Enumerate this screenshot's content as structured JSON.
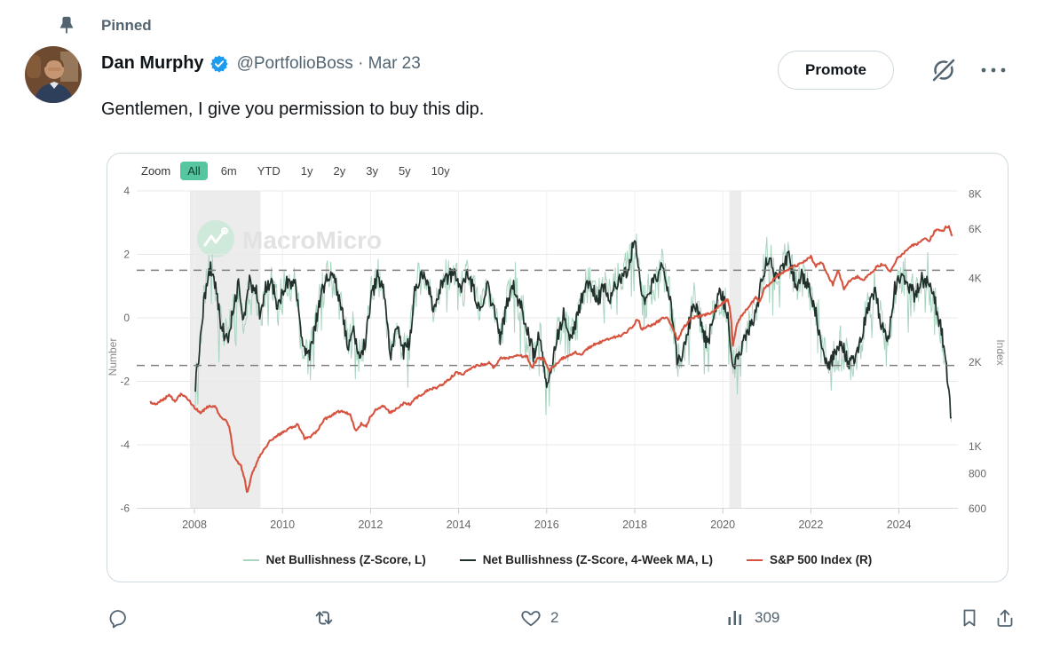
{
  "pinned_label": "Pinned",
  "author": {
    "name": "Dan Murphy",
    "meta": "@PortfolioBoss · Mar 23"
  },
  "promote_label": "Promote",
  "tweet_text": "Gentlemen, I give you permission to buy this dip.",
  "icons": {
    "pin": "pushpin",
    "verified": "blue-verified-check",
    "grok": "slashed-circle",
    "more": "ellipsis",
    "reply": "speech-bubble",
    "repost": "recycle-arrows",
    "like": "heart-outline",
    "views": "bar-chart",
    "bookmark": "bookmark-outline",
    "share": "arrow-up-from-tray"
  },
  "chart": {
    "zoom_label": "Zoom",
    "zoom_buttons": [
      "All",
      "6m",
      "YTD",
      "1y",
      "2y",
      "3y",
      "5y",
      "10y"
    ],
    "selected_zoom": "All",
    "watermark": "MacroMicro"
  },
  "chart_data": {
    "type": "line",
    "title": "",
    "x_ticks": [
      2008,
      2010,
      2012,
      2014,
      2016,
      2018,
      2020,
      2022,
      2024
    ],
    "x_range": [
      2006.9,
      2025.35
    ],
    "left_axis": {
      "title": "Number",
      "ticks": [
        4,
        2,
        0,
        -2,
        -4,
        -6
      ],
      "range": [
        -6.2,
        4.2
      ]
    },
    "right_axis": {
      "title": "Index",
      "scale": "log",
      "ticks": [
        [
          "8K",
          8000
        ],
        [
          "6K",
          6000
        ],
        [
          "4K",
          4000
        ],
        [
          "2K",
          2000
        ],
        [
          "1K",
          1000
        ],
        [
          "800",
          800
        ],
        [
          "600",
          600
        ]
      ]
    },
    "threshold_lines": [
      1.5,
      -1.5
    ],
    "recession_bands": [
      [
        2007.9,
        2009.5
      ],
      [
        2020.15,
        2020.42
      ]
    ],
    "grid": true,
    "legend_position": "bottom",
    "series": [
      {
        "name": "Net Bullishness (Z-Score, L)",
        "color": "#a9d4c0",
        "axis": "left",
        "style": "raw-weekly"
      },
      {
        "name": "Net Bullishness (Z-Score, 4-Week MA, L)",
        "color": "#22302c",
        "axis": "left",
        "style": "moving-average"
      },
      {
        "name": "S&P 500 Index (R)",
        "color": "#d6533f",
        "axis": "right",
        "style": "price"
      }
    ],
    "zscore_ma_points": [
      [
        2008.0,
        -2.4
      ],
      [
        2008.1,
        -1.2
      ],
      [
        2008.2,
        0.3
      ],
      [
        2008.35,
        1.6
      ],
      [
        2008.5,
        0.9
      ],
      [
        2008.6,
        -0.2
      ],
      [
        2008.75,
        -0.8
      ],
      [
        2008.9,
        0.5
      ],
      [
        2009.0,
        1.0
      ],
      [
        2009.1,
        -0.3
      ],
      [
        2009.25,
        1.1
      ],
      [
        2009.4,
        0.9
      ],
      [
        2009.5,
        0.0
      ],
      [
        2009.6,
        0.9
      ],
      [
        2009.75,
        1.2
      ],
      [
        2009.9,
        0.3
      ],
      [
        2010.0,
        0.9
      ],
      [
        2010.15,
        1.2
      ],
      [
        2010.3,
        1.0
      ],
      [
        2010.45,
        -0.9
      ],
      [
        2010.6,
        -1.2
      ],
      [
        2010.75,
        -0.2
      ],
      [
        2010.9,
        0.9
      ],
      [
        2011.05,
        1.3
      ],
      [
        2011.2,
        1.1
      ],
      [
        2011.35,
        0.2
      ],
      [
        2011.5,
        -1.1
      ],
      [
        2011.6,
        -0.3
      ],
      [
        2011.75,
        -1.3
      ],
      [
        2011.9,
        -0.6
      ],
      [
        2012.0,
        0.6
      ],
      [
        2012.15,
        1.3
      ],
      [
        2012.3,
        0.8
      ],
      [
        2012.45,
        -1.2
      ],
      [
        2012.6,
        -0.3
      ],
      [
        2012.75,
        -1.1
      ],
      [
        2012.9,
        -0.7
      ],
      [
        2013.0,
        0.8
      ],
      [
        2013.15,
        1.4
      ],
      [
        2013.3,
        1.1
      ],
      [
        2013.45,
        0.2
      ],
      [
        2013.6,
        1.0
      ],
      [
        2013.75,
        1.3
      ],
      [
        2013.9,
        1.4
      ],
      [
        2014.05,
        0.8
      ],
      [
        2014.2,
        1.3
      ],
      [
        2014.35,
        0.9
      ],
      [
        2014.5,
        0.1
      ],
      [
        2014.65,
        1.0
      ],
      [
        2014.8,
        0.2
      ],
      [
        2014.95,
        -0.7
      ],
      [
        2015.1,
        0.5
      ],
      [
        2015.25,
        1.0
      ],
      [
        2015.4,
        0.4
      ],
      [
        2015.55,
        -0.3
      ],
      [
        2015.7,
        -1.2
      ],
      [
        2015.85,
        -0.5
      ],
      [
        2016.0,
        -2.2
      ],
      [
        2016.1,
        -1.6
      ],
      [
        2016.25,
        -0.6
      ],
      [
        2016.4,
        0.2
      ],
      [
        2016.55,
        -0.8
      ],
      [
        2016.7,
        0.1
      ],
      [
        2016.85,
        0.9
      ],
      [
        2017.0,
        1.1
      ],
      [
        2017.15,
        0.5
      ],
      [
        2017.3,
        1.0
      ],
      [
        2017.45,
        0.6
      ],
      [
        2017.6,
        1.1
      ],
      [
        2017.75,
        1.3
      ],
      [
        2017.9,
        1.8
      ],
      [
        2018.0,
        2.6
      ],
      [
        2018.1,
        1.5
      ],
      [
        2018.2,
        0.4
      ],
      [
        2018.35,
        0.9
      ],
      [
        2018.5,
        1.3
      ],
      [
        2018.65,
        1.6
      ],
      [
        2018.8,
        0.6
      ],
      [
        2018.95,
        -1.2
      ],
      [
        2019.05,
        -1.5
      ],
      [
        2019.2,
        -0.4
      ],
      [
        2019.35,
        0.5
      ],
      [
        2019.5,
        -0.2
      ],
      [
        2019.65,
        -0.9
      ],
      [
        2019.8,
        0.2
      ],
      [
        2019.95,
        0.8
      ],
      [
        2020.1,
        0.2
      ],
      [
        2020.2,
        -1.4
      ],
      [
        2020.35,
        -1.3
      ],
      [
        2020.5,
        -0.6
      ],
      [
        2020.65,
        -0.2
      ],
      [
        2020.8,
        0.5
      ],
      [
        2020.95,
        1.6
      ],
      [
        2021.05,
        1.9
      ],
      [
        2021.2,
        1.2
      ],
      [
        2021.35,
        1.6
      ],
      [
        2021.5,
        1.9
      ],
      [
        2021.65,
        1.0
      ],
      [
        2021.8,
        1.3
      ],
      [
        2021.95,
        1.0
      ],
      [
        2022.1,
        0.2
      ],
      [
        2022.25,
        -0.9
      ],
      [
        2022.4,
        -1.5
      ],
      [
        2022.55,
        -1.2
      ],
      [
        2022.7,
        -0.8
      ],
      [
        2022.85,
        -1.4
      ],
      [
        2023.0,
        -1.3
      ],
      [
        2023.15,
        -0.6
      ],
      [
        2023.3,
        0.3
      ],
      [
        2023.45,
        0.9
      ],
      [
        2023.6,
        -0.2
      ],
      [
        2023.75,
        -0.8
      ],
      [
        2023.9,
        0.9
      ],
      [
        2024.05,
        1.4
      ],
      [
        2024.2,
        1.1
      ],
      [
        2024.35,
        0.7
      ],
      [
        2024.5,
        1.2
      ],
      [
        2024.65,
        1.1
      ],
      [
        2024.8,
        0.6
      ],
      [
        2024.95,
        -0.3
      ],
      [
        2025.05,
        -1.2
      ],
      [
        2025.12,
        -2.1
      ],
      [
        2025.2,
        -3.3
      ]
    ],
    "raw_noise": {
      "amplitude": 1.3,
      "neg_spike_threshold": 0.9,
      "neg_spike_scale": 14,
      "pos_spike_threshold": 0.05,
      "pos_spike_scale": 10
    },
    "sp500_points": [
      [
        2007.0,
        1440
      ],
      [
        2007.15,
        1420
      ],
      [
        2007.3,
        1480
      ],
      [
        2007.45,
        1530
      ],
      [
        2007.55,
        1450
      ],
      [
        2007.7,
        1540
      ],
      [
        2007.85,
        1480
      ],
      [
        2008.0,
        1380
      ],
      [
        2008.15,
        1320
      ],
      [
        2008.3,
        1390
      ],
      [
        2008.45,
        1400
      ],
      [
        2008.6,
        1280
      ],
      [
        2008.7,
        1250
      ],
      [
        2008.8,
        1160
      ],
      [
        2008.88,
        950
      ],
      [
        2008.95,
        890
      ],
      [
        2009.05,
        860
      ],
      [
        2009.15,
        750
      ],
      [
        2009.2,
        676
      ],
      [
        2009.3,
        790
      ],
      [
        2009.45,
        900
      ],
      [
        2009.6,
        990
      ],
      [
        2009.75,
        1060
      ],
      [
        2009.9,
        1100
      ],
      [
        2010.05,
        1130
      ],
      [
        2010.2,
        1170
      ],
      [
        2010.35,
        1200
      ],
      [
        2010.5,
        1070
      ],
      [
        2010.65,
        1090
      ],
      [
        2010.8,
        1140
      ],
      [
        2010.95,
        1250
      ],
      [
        2011.1,
        1290
      ],
      [
        2011.25,
        1330
      ],
      [
        2011.4,
        1340
      ],
      [
        2011.55,
        1290
      ],
      [
        2011.65,
        1140
      ],
      [
        2011.8,
        1210
      ],
      [
        2011.9,
        1180
      ],
      [
        2012.0,
        1280
      ],
      [
        2012.15,
        1370
      ],
      [
        2012.3,
        1400
      ],
      [
        2012.45,
        1320
      ],
      [
        2012.6,
        1370
      ],
      [
        2012.75,
        1430
      ],
      [
        2012.9,
        1420
      ],
      [
        2013.05,
        1500
      ],
      [
        2013.2,
        1550
      ],
      [
        2013.35,
        1610
      ],
      [
        2013.5,
        1620
      ],
      [
        2013.65,
        1680
      ],
      [
        2013.8,
        1750
      ],
      [
        2013.95,
        1840
      ],
      [
        2014.1,
        1820
      ],
      [
        2014.25,
        1880
      ],
      [
        2014.4,
        1950
      ],
      [
        2014.55,
        1970
      ],
      [
        2014.7,
        1990
      ],
      [
        2014.8,
        1900
      ],
      [
        2014.95,
        2080
      ],
      [
        2015.1,
        2060
      ],
      [
        2015.25,
        2110
      ],
      [
        2015.4,
        2110
      ],
      [
        2015.55,
        2100
      ],
      [
        2015.67,
        1920
      ],
      [
        2015.8,
        2070
      ],
      [
        2015.95,
        2050
      ],
      [
        2016.05,
        1870
      ],
      [
        2016.2,
        1960
      ],
      [
        2016.35,
        2070
      ],
      [
        2016.5,
        2100
      ],
      [
        2016.65,
        2170
      ],
      [
        2016.8,
        2130
      ],
      [
        2016.95,
        2250
      ],
      [
        2017.1,
        2330
      ],
      [
        2017.25,
        2370
      ],
      [
        2017.4,
        2420
      ],
      [
        2017.55,
        2460
      ],
      [
        2017.7,
        2500
      ],
      [
        2017.85,
        2590
      ],
      [
        2018.0,
        2750
      ],
      [
        2018.07,
        2870
      ],
      [
        2018.15,
        2630
      ],
      [
        2018.3,
        2690
      ],
      [
        2018.45,
        2750
      ],
      [
        2018.6,
        2850
      ],
      [
        2018.72,
        2920
      ],
      [
        2018.85,
        2680
      ],
      [
        2018.98,
        2400
      ],
      [
        2019.1,
        2650
      ],
      [
        2019.25,
        2830
      ],
      [
        2019.4,
        2920
      ],
      [
        2019.55,
        2950
      ],
      [
        2019.7,
        2990
      ],
      [
        2019.85,
        3100
      ],
      [
        2020.0,
        3260
      ],
      [
        2020.12,
        3360
      ],
      [
        2020.18,
        2950
      ],
      [
        2020.23,
        2280
      ],
      [
        2020.32,
        2750
      ],
      [
        2020.45,
        2980
      ],
      [
        2020.6,
        3180
      ],
      [
        2020.75,
        3400
      ],
      [
        2020.85,
        3300
      ],
      [
        2020.95,
        3690
      ],
      [
        2021.1,
        3870
      ],
      [
        2021.25,
        4100
      ],
      [
        2021.4,
        4200
      ],
      [
        2021.55,
        4380
      ],
      [
        2021.7,
        4450
      ],
      [
        2021.85,
        4600
      ],
      [
        2022.0,
        4780
      ],
      [
        2022.1,
        4420
      ],
      [
        2022.25,
        4550
      ],
      [
        2022.4,
        4050
      ],
      [
        2022.5,
        3800
      ],
      [
        2022.62,
        4250
      ],
      [
        2022.75,
        3680
      ],
      [
        2022.9,
        3950
      ],
      [
        2023.05,
        4050
      ],
      [
        2023.2,
        3950
      ],
      [
        2023.35,
        4150
      ],
      [
        2023.5,
        4400
      ],
      [
        2023.65,
        4500
      ],
      [
        2023.8,
        4230
      ],
      [
        2023.95,
        4680
      ],
      [
        2024.1,
        4900
      ],
      [
        2024.25,
        5200
      ],
      [
        2024.4,
        5280
      ],
      [
        2024.5,
        5450
      ],
      [
        2024.6,
        5530
      ],
      [
        2024.68,
        5400
      ],
      [
        2024.8,
        5850
      ],
      [
        2024.9,
        6000
      ],
      [
        2025.0,
        5900
      ],
      [
        2025.07,
        6100
      ],
      [
        2025.13,
        6120
      ],
      [
        2025.17,
        5850
      ],
      [
        2025.22,
        5640
      ]
    ]
  },
  "actions": {
    "like_count": "2",
    "view_count": "309"
  }
}
